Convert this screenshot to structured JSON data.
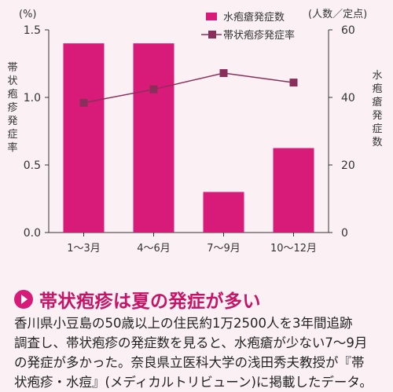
{
  "chart_data": {
    "type": "bar+line",
    "categories": [
      "1～3月",
      "4～6月",
      "7～9月",
      "10～12月"
    ],
    "series": [
      {
        "name": "水疱瘡発症数",
        "kind": "bar",
        "axis": "right",
        "values": [
          56,
          56,
          12,
          25
        ],
        "color": "#d81b78"
      },
      {
        "name": "帯状疱疹発症率",
        "kind": "line",
        "axis": "left",
        "values": [
          0.96,
          1.06,
          1.18,
          1.11
        ],
        "color": "#8a2f5c"
      }
    ],
    "left_axis": {
      "unit_label": "(%)",
      "label": "帯状疱疹発症率",
      "ylim": [
        0,
        1.5
      ],
      "ticks": [
        "0.0",
        "0.5",
        "1.0",
        "1.5"
      ]
    },
    "right_axis": {
      "unit_label": "(人数／定点)",
      "label": "水疱瘡発症数",
      "ylim": [
        0,
        60
      ],
      "ticks": [
        "0",
        "20",
        "40",
        "60"
      ]
    },
    "legend": [
      "水疱瘡発症数",
      "帯状疱疹発症率"
    ],
    "legend_placement": "top-right",
    "grid": false
  },
  "caption": {
    "title": "帯状疱疹は夏の発症が多い",
    "body_lines": [
      "香川県小豆島の50歳以上の住民約1万2500人を3年間追跡",
      "調査し、帯状疱疹の発症数を見ると、水疱瘡が少ない7～9月",
      "の発症が多かった。奈良県立医科大学の浅田秀夫教授が『帯",
      "状疱疹・水痘』(メディカルトリビューン)に掲載したデータ。"
    ]
  }
}
